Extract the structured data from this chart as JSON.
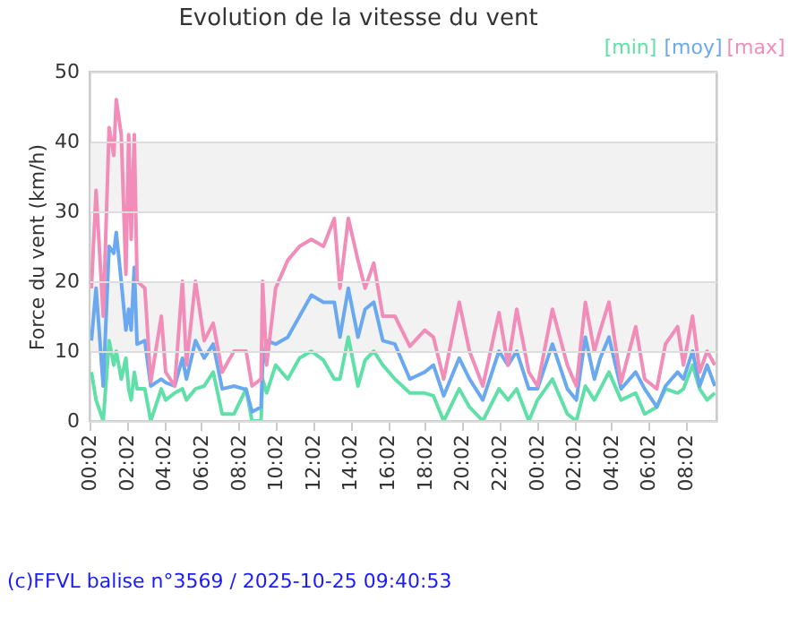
{
  "chart_data": {
    "type": "line",
    "title": "Evolution de la vitesse du vent",
    "ylabel": "Force du vent (km/h)",
    "annotations": [
      "(c)FFVL balise n°3569 / 2025-10-25 09:40:53"
    ],
    "x": [
      "2025-10-24T00:08",
      "2025-10-24T00:23",
      "2025-10-24T00:46",
      "2025-10-24T01:05",
      "2025-10-24T01:20",
      "2025-10-24T01:28",
      "2025-10-24T01:44",
      "2025-10-24T01:59",
      "2025-10-24T02:08",
      "2025-10-24T02:16",
      "2025-10-24T02:26",
      "2025-10-24T02:35",
      "2025-10-24T03:00",
      "2025-10-24T03:19",
      "2025-10-24T03:53",
      "2025-10-24T04:07",
      "2025-10-24T04:36",
      "2025-10-24T05:01",
      "2025-10-24T05:14",
      "2025-10-24T05:43",
      "2025-10-24T06:11",
      "2025-10-24T06:40",
      "2025-10-24T07:09",
      "2025-10-24T07:47",
      "2025-10-24T08:26",
      "2025-10-24T08:45",
      "2025-10-24T09:14",
      "2025-10-24T09:19",
      "2025-10-24T09:32",
      "2025-10-24T10:01",
      "2025-10-24T10:40",
      "2025-10-24T11:18",
      "2025-10-24T11:56",
      "2025-10-24T12:35",
      "2025-10-24T13:10",
      "2025-10-24T13:28",
      "2025-10-24T13:55",
      "2025-10-24T14:26",
      "2025-10-24T14:49",
      "2025-10-24T15:17",
      "2025-10-24T15:46",
      "2025-10-24T16:25",
      "2025-10-24T17:13",
      "2025-10-24T18:01",
      "2025-10-24T18:29",
      "2025-10-24T19:02",
      "2025-10-24T19:52",
      "2025-10-24T20:25",
      "2025-10-24T21:08",
      "2025-10-24T22:00",
      "2025-10-24T22:29",
      "2025-10-24T22:57",
      "2025-10-24T23:36",
      "2025-10-25T00:04",
      "2025-10-25T00:52",
      "2025-10-25T01:40",
      "2025-10-25T02:09",
      "2025-10-25T02:38",
      "2025-10-25T03:07",
      "2025-10-25T03:26",
      "2025-10-25T03:54",
      "2025-10-25T04:33",
      "2025-10-25T05:20",
      "2025-10-25T05:49",
      "2025-10-25T06:28",
      "2025-10-25T06:56",
      "2025-10-25T07:35",
      "2025-10-25T07:54",
      "2025-10-25T08:23",
      "2025-10-25T08:46",
      "2025-10-25T09:10",
      "2025-10-25T09:35"
    ],
    "series": [
      {
        "name": "[min]",
        "color": "#60e0a8",
        "values": [
          7,
          3,
          0,
          11.5,
          8,
          10,
          6,
          9,
          4.6,
          3,
          7,
          4.6,
          4.6,
          0,
          4.6,
          3,
          4,
          4.6,
          3,
          4.6,
          5,
          7,
          1,
          1,
          4.6,
          0,
          0,
          6,
          4,
          8,
          6,
          9,
          10,
          8.7,
          6,
          6,
          12,
          5,
          8.7,
          10,
          8,
          6,
          4,
          4,
          3.6,
          0,
          4.6,
          2,
          0,
          4.6,
          3,
          4.6,
          0,
          3,
          6,
          1,
          0,
          5,
          3,
          4.6,
          7,
          3,
          4,
          1,
          2,
          4.6,
          4,
          4.6,
          8,
          4.6,
          3,
          4
        ]
      },
      {
        "name": "[moy]",
        "color": "#6aa8f0",
        "values": [
          11.5,
          19,
          5,
          25,
          24,
          27,
          20,
          13,
          16,
          13,
          22,
          11,
          11.5,
          5,
          6,
          5.5,
          5,
          9,
          6,
          11.5,
          9,
          11,
          4.6,
          5,
          4.5,
          1.3,
          2,
          8,
          11.5,
          11,
          12,
          15,
          18,
          17,
          17,
          12,
          19,
          12,
          16,
          17,
          11.5,
          11,
          6,
          7,
          8,
          3.6,
          9,
          6,
          3,
          10,
          8,
          10,
          4.6,
          4.6,
          11,
          4.6,
          3,
          12,
          6,
          9,
          12,
          4.6,
          7,
          4.6,
          2,
          5,
          7,
          6,
          10,
          5,
          8,
          5
        ]
      },
      {
        "name": "[max]",
        "color": "#f28cb8",
        "values": [
          19,
          33,
          15,
          42,
          38,
          46,
          41,
          21,
          41,
          26,
          41,
          20,
          19,
          5.6,
          15,
          7,
          5,
          20,
          8,
          20,
          11.5,
          14,
          7,
          10,
          10,
          5,
          6,
          20,
          8,
          19,
          23,
          25,
          26,
          25,
          29,
          19,
          29,
          23,
          19,
          22.6,
          15,
          15,
          10.7,
          13,
          12,
          6,
          17,
          10,
          5,
          15.5,
          8,
          16,
          7,
          5,
          16,
          8,
          5,
          17,
          10,
          13,
          17,
          5.5,
          13.5,
          6,
          4.6,
          11,
          13.5,
          8,
          15,
          7,
          10,
          8
        ]
      }
    ],
    "xlim": [
      "2025-10-24T00:02",
      "2025-10-25T09:40"
    ],
    "xticks": [
      {
        "value": "2025-10-24T00:02",
        "label": "00:02"
      },
      {
        "value": "2025-10-24T02:02",
        "label": "02:02"
      },
      {
        "value": "2025-10-24T04:02",
        "label": "04:02"
      },
      {
        "value": "2025-10-24T06:02",
        "label": "06:02"
      },
      {
        "value": "2025-10-24T08:02",
        "label": "08:02"
      },
      {
        "value": "2025-10-24T10:02",
        "label": "10:02"
      },
      {
        "value": "2025-10-24T12:02",
        "label": "12:02"
      },
      {
        "value": "2025-10-24T14:02",
        "label": "14:02"
      },
      {
        "value": "2025-10-24T16:02",
        "label": "16:02"
      },
      {
        "value": "2025-10-24T18:02",
        "label": "18:02"
      },
      {
        "value": "2025-10-24T20:02",
        "label": "20:02"
      },
      {
        "value": "2025-10-24T22:02",
        "label": "22:02"
      },
      {
        "value": "2025-10-25T00:02",
        "label": "00:02"
      },
      {
        "value": "2025-10-25T02:02",
        "label": "02:02"
      },
      {
        "value": "2025-10-25T04:02",
        "label": "04:02"
      },
      {
        "value": "2025-10-25T06:02",
        "label": "06:02"
      },
      {
        "value": "2025-10-25T08:02",
        "label": "08:02"
      }
    ],
    "ylim": [
      0,
      50
    ],
    "yticks": [
      0,
      10,
      20,
      30,
      40,
      50
    ],
    "bands": [
      {
        "axis": "y",
        "from": 10,
        "to": 20,
        "color": "#f2f2f2"
      },
      {
        "axis": "y",
        "from": 30,
        "to": 40,
        "color": "#f2f2f2"
      }
    ],
    "grid": "y",
    "legend": "top right",
    "line_style": "solid"
  }
}
